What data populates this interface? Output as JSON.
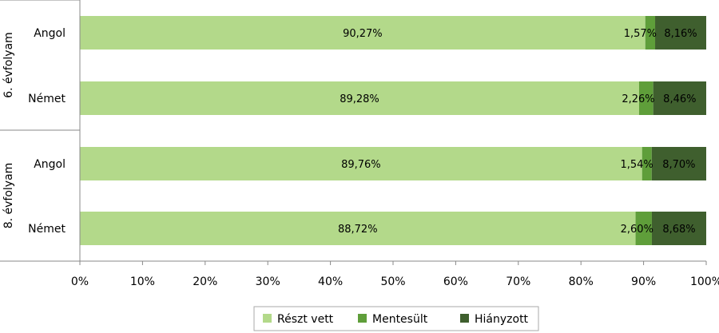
{
  "chart_data": {
    "type": "bar",
    "orientation": "horizontal",
    "stacked": true,
    "groups": [
      {
        "label": "6. évfolyam",
        "categories": [
          "Angol",
          "Német"
        ]
      },
      {
        "label": "8. évfolyam",
        "categories": [
          "Angol",
          "Német"
        ]
      }
    ],
    "categories": [
      "Angol",
      "Német",
      "Angol",
      "Német"
    ],
    "series": [
      {
        "name": "Részt vett",
        "color": "#b3d98a",
        "values": [
          90.27,
          89.28,
          89.76,
          88.72
        ],
        "labels": [
          "90,27%",
          "89,28%",
          "89,76%",
          "88,72%"
        ]
      },
      {
        "name": "Mentesült",
        "color": "#5f9e3a",
        "values": [
          1.57,
          2.26,
          1.54,
          2.6
        ],
        "labels": [
          "1,57%",
          "2,26%",
          "1,54%",
          "2,60%"
        ]
      },
      {
        "name": "Hiányzott",
        "color": "#3f5f2e",
        "values": [
          8.16,
          8.46,
          8.7,
          8.68
        ],
        "labels": [
          "8,16%",
          "8,46%",
          "8,70%",
          "8,68%"
        ]
      }
    ],
    "xlim": [
      0,
      100
    ],
    "xticks": [
      "0%",
      "10%",
      "20%",
      "30%",
      "40%",
      "50%",
      "60%",
      "70%",
      "80%",
      "90%",
      "100%"
    ],
    "grid": false,
    "legend_position": "bottom"
  }
}
